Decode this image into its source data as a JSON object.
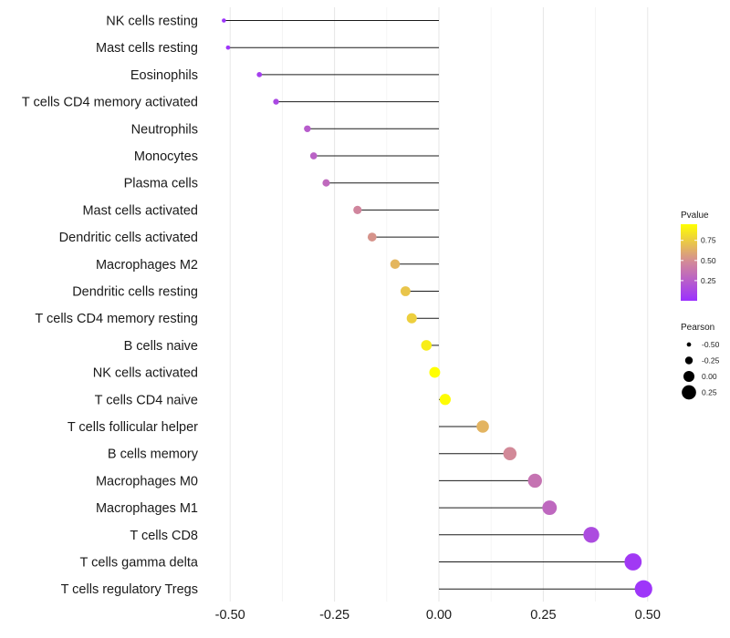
{
  "chart_data": {
    "type": "lollipop",
    "title": "",
    "xlabel": "",
    "ylabel": "",
    "xlim": [
      -0.55,
      0.55
    ],
    "x_ticks": [
      -0.5,
      -0.25,
      0.0,
      0.25,
      0.5
    ],
    "x_tick_labels": [
      "-0.50",
      "-0.25",
      "0.00",
      "0.25",
      "0.50"
    ],
    "points": [
      {
        "label": "NK cells resting",
        "pearson": -0.515,
        "pvalue": 0.02
      },
      {
        "label": "Mast cells resting",
        "pearson": -0.505,
        "pvalue": 0.03
      },
      {
        "label": "Eosinophils",
        "pearson": -0.43,
        "pvalue": 0.08
      },
      {
        "label": "T cells CD4 memory activated",
        "pearson": -0.39,
        "pvalue": 0.13
      },
      {
        "label": "Neutrophils",
        "pearson": -0.315,
        "pvalue": 0.24
      },
      {
        "label": "Monocytes",
        "pearson": -0.3,
        "pvalue": 0.27
      },
      {
        "label": "Plasma cells",
        "pearson": -0.27,
        "pvalue": 0.31
      },
      {
        "label": "Mast cells activated",
        "pearson": -0.195,
        "pvalue": 0.46
      },
      {
        "label": "Dendritic cells activated",
        "pearson": -0.16,
        "pvalue": 0.52
      },
      {
        "label": "Macrophages M2",
        "pearson": -0.105,
        "pvalue": 0.66
      },
      {
        "label": "Dendritic cells resting",
        "pearson": -0.08,
        "pvalue": 0.72
      },
      {
        "label": "T cells CD4 memory resting",
        "pearson": -0.065,
        "pvalue": 0.76
      },
      {
        "label": "B cells naive",
        "pearson": -0.03,
        "pvalue": 0.88
      },
      {
        "label": "NK cells activated",
        "pearson": -0.01,
        "pvalue": 0.95
      },
      {
        "label": "T cells CD4 naive",
        "pearson": 0.015,
        "pvalue": 0.94
      },
      {
        "label": "T cells follicular helper",
        "pearson": 0.105,
        "pvalue": 0.65
      },
      {
        "label": "B cells memory",
        "pearson": 0.17,
        "pvalue": 0.48
      },
      {
        "label": "Macrophages M0",
        "pearson": 0.23,
        "pvalue": 0.36
      },
      {
        "label": "Macrophages M1",
        "pearson": 0.265,
        "pvalue": 0.3
      },
      {
        "label": "T cells CD8",
        "pearson": 0.365,
        "pvalue": 0.15
      },
      {
        "label": "T cells gamma delta",
        "pearson": 0.465,
        "pvalue": 0.05
      },
      {
        "label": "T cells regulatory  Tregs",
        "pearson": 0.49,
        "pvalue": 0.03
      }
    ],
    "color_legend": {
      "title": "Pvalue",
      "tick_values": [
        0.25,
        0.5,
        0.75
      ],
      "tick_labels": [
        "0.25",
        "0.50",
        "0.75"
      ],
      "range": [
        0.0,
        0.95
      ],
      "low_color": "#9B30FF",
      "mid_color": "#D2889A",
      "high_color": "#FFFF00"
    },
    "size_legend": {
      "title": "Pearson",
      "values": [
        -0.5,
        -0.25,
        0.0,
        0.25
      ],
      "labels": [
        "-0.50",
        "-0.25",
        "0.00",
        "0.25"
      ]
    }
  }
}
